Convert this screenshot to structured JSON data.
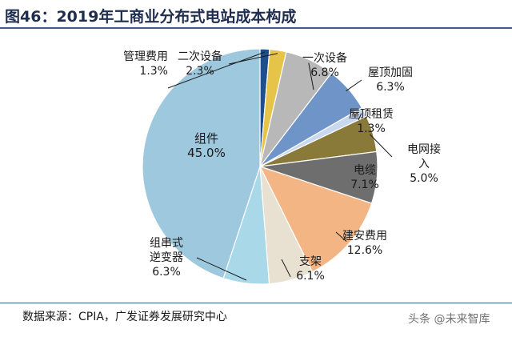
{
  "header": {
    "title": "图46：2019年工商业分布式电站成本构成"
  },
  "chart_data": {
    "type": "pie",
    "title": "2019年工商业分布式电站成本构成",
    "unit": "%",
    "slices": [
      {
        "name": "管理费用",
        "value": 1.3,
        "value_label": "1.3%",
        "color": "#1f4e8c"
      },
      {
        "name": "二次设备",
        "value": 2.3,
        "value_label": "2.3%",
        "color": "#e6c44a"
      },
      {
        "name": "一次设备",
        "value": 6.8,
        "value_label": "6.8%",
        "color": "#b8b8b8"
      },
      {
        "name": "屋顶加固",
        "value": 6.3,
        "value_label": "6.3%",
        "color": "#6f94c8"
      },
      {
        "name": "屋顶租赁",
        "value": 1.3,
        "value_label": "1.3%",
        "color": "#c8d8ee"
      },
      {
        "name": "电网接入",
        "value": 5.0,
        "value_label": "5.0%",
        "color": "#8a7a3a"
      },
      {
        "name": "电缆",
        "value": 7.1,
        "value_label": "7.1%",
        "color": "#6e6e6e"
      },
      {
        "name": "建安费用",
        "value": 12.6,
        "value_label": "12.6%",
        "color": "#f4b585"
      },
      {
        "name": "支架",
        "value": 6.1,
        "value_label": "6.1%",
        "color": "#e8e0d0"
      },
      {
        "name": "组串式逆变器",
        "value": 6.3,
        "value_label": "6.3%",
        "color": "#a9d8e8"
      },
      {
        "name": "组件",
        "value": 45.0,
        "value_label": "45.0%",
        "color": "#9ec8de"
      }
    ],
    "labels": {
      "guanli": {
        "line1": "管理费用",
        "value": "1.3%"
      },
      "erci": {
        "line1": "二次设备",
        "value": "2.3%"
      },
      "yici": {
        "line1": "一次设备",
        "value": "6.8%"
      },
      "wuding_jiagu": {
        "line1": "屋顶加固",
        "value": "6.3%"
      },
      "wuding_zulin": {
        "line1": "屋顶租赁",
        "value": "1.3%"
      },
      "dianwang": {
        "line1": "电网接",
        "line2": "入",
        "value": "5.0%"
      },
      "dianlan": {
        "line1": "电缆",
        "value": "7.1%"
      },
      "jianan": {
        "line1": "建安费用",
        "value": "12.6%"
      },
      "zhijia": {
        "line1": "支架",
        "value": "6.1%"
      },
      "nibian": {
        "line1": "组串式",
        "line2": "逆变器",
        "value": "6.3%"
      },
      "zujian": {
        "line1": "组件",
        "value": "45.0%"
      }
    }
  },
  "footer": {
    "source": "数据来源：CPIA，广发证券发展研究中心",
    "watermark": "头条 @未来智库"
  }
}
